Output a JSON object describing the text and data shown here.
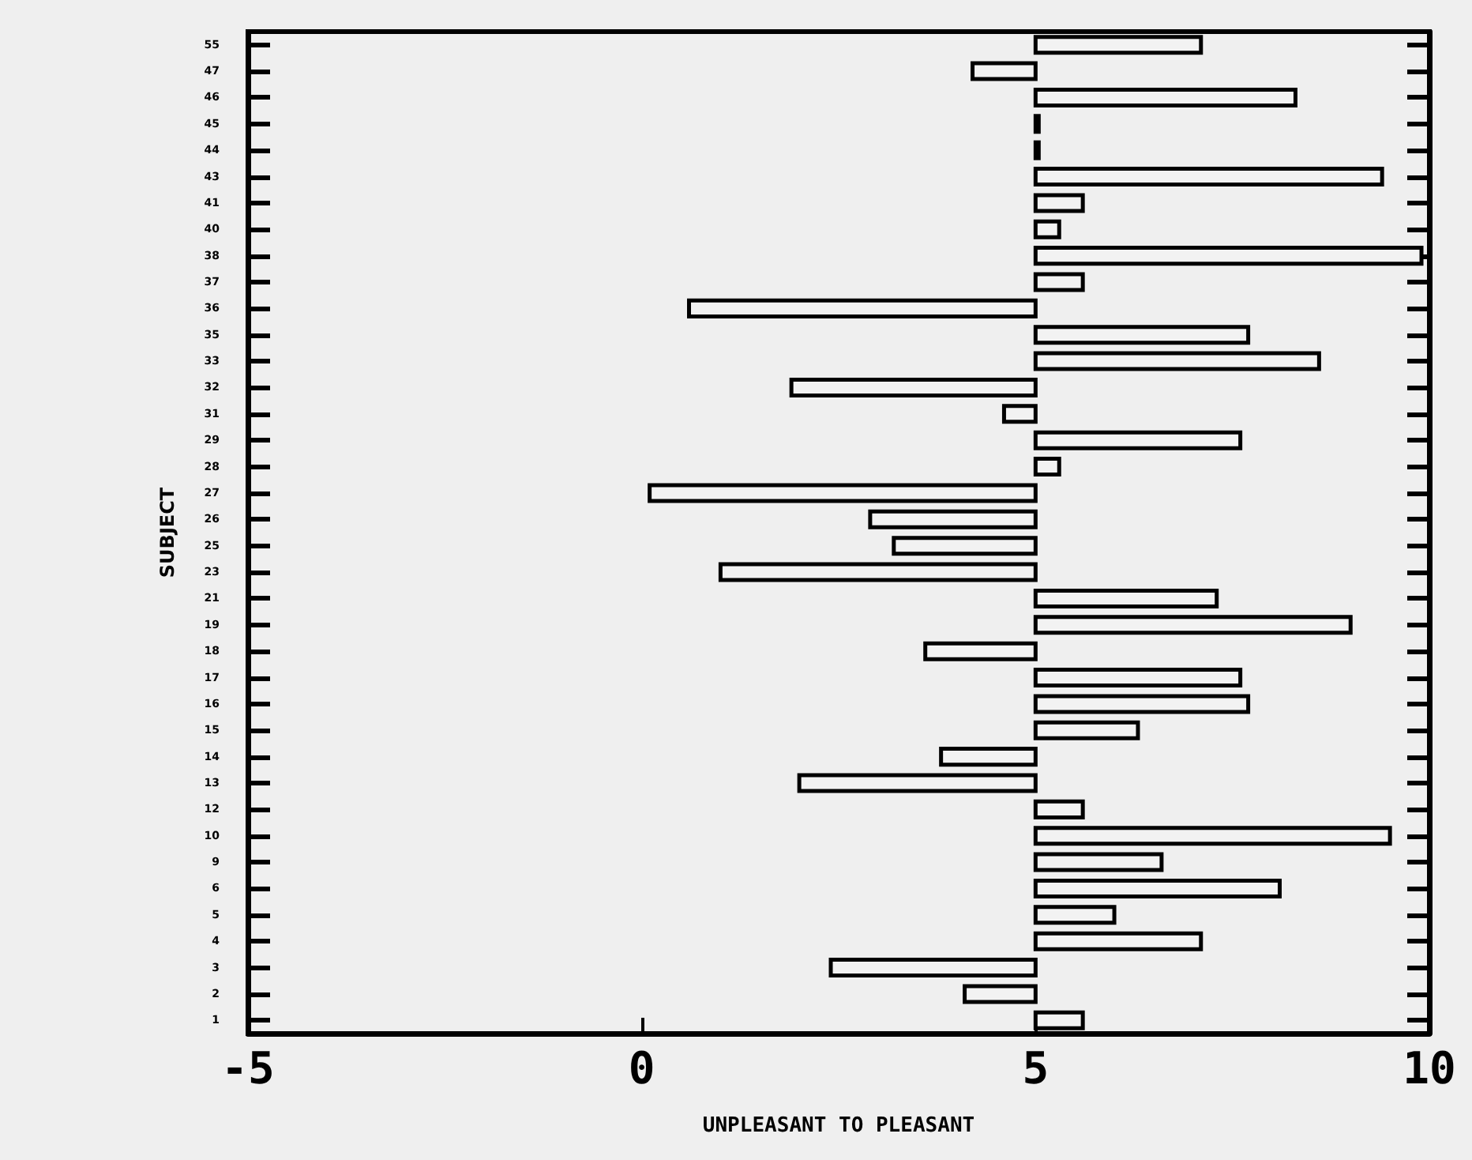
{
  "chart_data": {
    "type": "bar",
    "orientation": "horizontal",
    "xlabel": "UNPLEASANT TO PLEASANT",
    "ylabel": "SUBJECT",
    "categories": [
      "55",
      "47",
      "46",
      "45",
      "44",
      "43",
      "41",
      "40",
      "38",
      "37",
      "36",
      "35",
      "33",
      "32",
      "31",
      "29",
      "28",
      "27",
      "26",
      "25",
      "23",
      "21",
      "19",
      "18",
      "17",
      "16",
      "15",
      "14",
      "13",
      "12",
      "10",
      "9",
      "6",
      "5",
      "4",
      "3",
      "2",
      "1"
    ],
    "base": [
      5,
      5,
      5,
      5,
      5,
      5,
      5,
      5,
      5,
      5,
      5,
      5,
      5,
      5,
      5,
      5,
      5,
      5,
      5,
      5,
      5,
      5,
      5,
      5,
      5,
      5,
      5,
      5,
      5,
      5,
      5,
      5,
      5,
      5,
      5,
      5,
      5,
      5
    ],
    "values": [
      2.1,
      -0.8,
      3.3,
      0,
      0,
      4.4,
      0.6,
      0.3,
      4.9,
      0.6,
      -4.4,
      2.7,
      3.6,
      -3.1,
      -0.4,
      2.6,
      0.3,
      -4.9,
      -2.1,
      -1.8,
      -4.0,
      2.3,
      4.0,
      -1.4,
      2.6,
      2.7,
      1.3,
      -1.2,
      -3.0,
      0.6,
      4.5,
      1.6,
      3.1,
      1.0,
      2.1,
      -2.6,
      -0.9,
      0.6
    ],
    "color": "#f2f2f2",
    "xlim": [
      -5,
      10
    ],
    "xticks": [
      -5,
      0,
      5,
      10
    ],
    "grid": false
  }
}
